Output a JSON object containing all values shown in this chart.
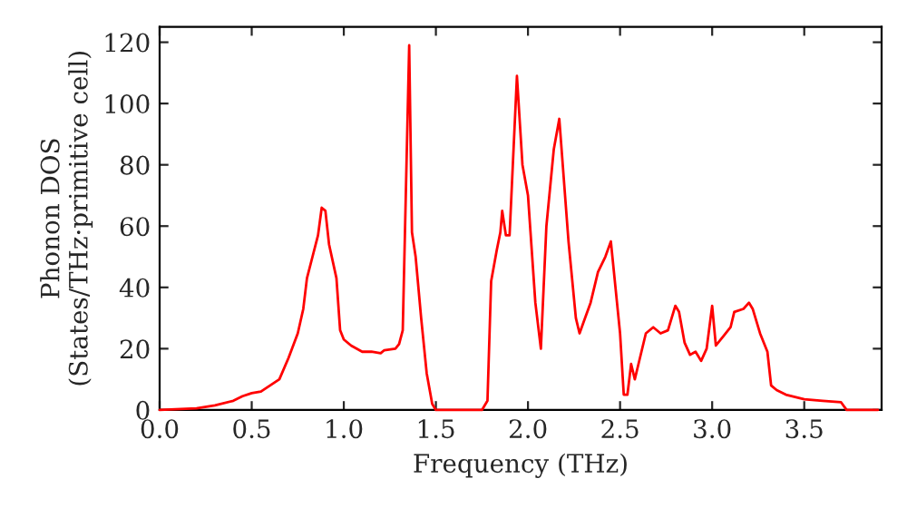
{
  "chart_data": {
    "type": "line",
    "xlabel": "Frequency (THz)",
    "ylabel": "Phonon DOS\n(States/THz·primitive cell)",
    "x": [
      0,
      0.2,
      0.3,
      0.4,
      0.45,
      0.5,
      0.55,
      0.6,
      0.65,
      0.7,
      0.75,
      0.78,
      0.8,
      0.83,
      0.86,
      0.88,
      0.9,
      0.92,
      0.96,
      0.98,
      1.0,
      1.04,
      1.1,
      1.15,
      1.2,
      1.22,
      1.28,
      1.3,
      1.32,
      1.355,
      1.37,
      1.39,
      1.42,
      1.45,
      1.48,
      1.5,
      1.75,
      1.78,
      1.8,
      1.83,
      1.85,
      1.86,
      1.88,
      1.9,
      1.94,
      1.97,
      2.0,
      2.04,
      2.07,
      2.1,
      2.14,
      2.17,
      2.22,
      2.26,
      2.28,
      2.31,
      2.34,
      2.38,
      2.42,
      2.45,
      2.5,
      2.52,
      2.54,
      2.56,
      2.58,
      2.6,
      2.64,
      2.68,
      2.72,
      2.76,
      2.8,
      2.82,
      2.85,
      2.88,
      2.91,
      2.94,
      2.97,
      3.0,
      3.02,
      3.06,
      3.1,
      3.12,
      3.17,
      3.2,
      3.22,
      3.26,
      3.3,
      3.32,
      3.35,
      3.4,
      3.5,
      3.6,
      3.7,
      3.73,
      3.9
    ],
    "series": [
      {
        "color": "#ff0000",
        "values": [
          0,
          0.5,
          1.5,
          3,
          4.5,
          5.5,
          6,
          8,
          10,
          17,
          25,
          33,
          43,
          50,
          57,
          66,
          65,
          54,
          43,
          26,
          23,
          21,
          19,
          19,
          18.5,
          19.5,
          20,
          21.5,
          26,
          119,
          58,
          50,
          30,
          12,
          2,
          0,
          0,
          3,
          42,
          52,
          58,
          65,
          57,
          57,
          109,
          80,
          70,
          35,
          20,
          60,
          85,
          95,
          55,
          30,
          25,
          30,
          35,
          45,
          50,
          55,
          25,
          5,
          5,
          15,
          10,
          15,
          25,
          27,
          25,
          26,
          34,
          32,
          22,
          18,
          19,
          16,
          20,
          34,
          21,
          24,
          27,
          32,
          33,
          35,
          33,
          25,
          19,
          8,
          6.5,
          5,
          3.5,
          3,
          2.5,
          0,
          0
        ]
      }
    ],
    "xlim": [
      0,
      3.92
    ],
    "ylim": [
      0,
      125
    ],
    "xticks": [
      {
        "value": 0,
        "label": "0.0"
      },
      {
        "value": 0.5,
        "label": "0.5"
      },
      {
        "value": 1,
        "label": "1.0"
      },
      {
        "value": 1.5,
        "label": "1.5"
      },
      {
        "value": 2,
        "label": "2.0"
      },
      {
        "value": 2.5,
        "label": "2.5"
      },
      {
        "value": 3,
        "label": "3.0"
      },
      {
        "value": 3.5,
        "label": "3.5"
      }
    ],
    "yticks": [
      0,
      20,
      40,
      60,
      80,
      100,
      120
    ],
    "grid": false,
    "legend": false,
    "marker": "none",
    "line_style": "solid"
  }
}
